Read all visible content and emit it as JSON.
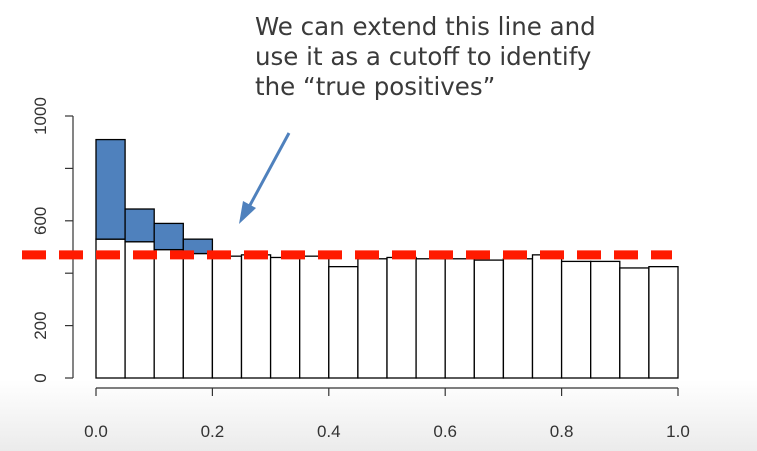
{
  "annotation": {
    "lines": [
      "We can extend this line and",
      "use it as a cutoff to identify",
      "the “true positives”"
    ]
  },
  "colors": {
    "null_fill": "#ffffff",
    "excess_fill": "#4f81bd",
    "outline": "#000000",
    "cutoff_line": "#ff1a00",
    "arrow": "#4f81bd"
  },
  "chart_data": {
    "type": "bar",
    "subtype": "stacked-histogram",
    "x_bins": [
      0.0,
      0.05,
      0.1,
      0.15,
      0.2,
      0.25,
      0.3,
      0.35,
      0.4,
      0.45,
      0.5,
      0.55,
      0.6,
      0.65,
      0.7,
      0.75,
      0.8,
      0.85,
      0.9,
      0.95,
      1.0
    ],
    "series": [
      {
        "values": [
          530,
          520,
          490,
          475,
          465,
          470,
          460,
          465,
          425,
          455,
          460,
          455,
          455,
          450,
          455,
          470,
          445,
          445,
          420,
          425
        ]
      },
      {
        "values": [
          380,
          125,
          100,
          55,
          0,
          0,
          0,
          0,
          0,
          0,
          0,
          0,
          0,
          0,
          0,
          0,
          0,
          0,
          0,
          0
        ]
      }
    ],
    "xlim": [
      0,
      1.0
    ],
    "ylim": [
      0,
      1000
    ],
    "x_ticks": [
      "0.0",
      "0.2",
      "0.4",
      "0.6",
      "0.8",
      "1.0"
    ],
    "x_tick_values": [
      0,
      0.2,
      0.4,
      0.6,
      0.8,
      1.0
    ],
    "y_ticks": [
      "0",
      "200",
      "600",
      "1000"
    ],
    "y_tick_values": [
      0,
      200,
      600,
      1000
    ],
    "cutoff_value": 470,
    "title": "",
    "xlabel": "",
    "ylabel": "",
    "grid": false
  }
}
